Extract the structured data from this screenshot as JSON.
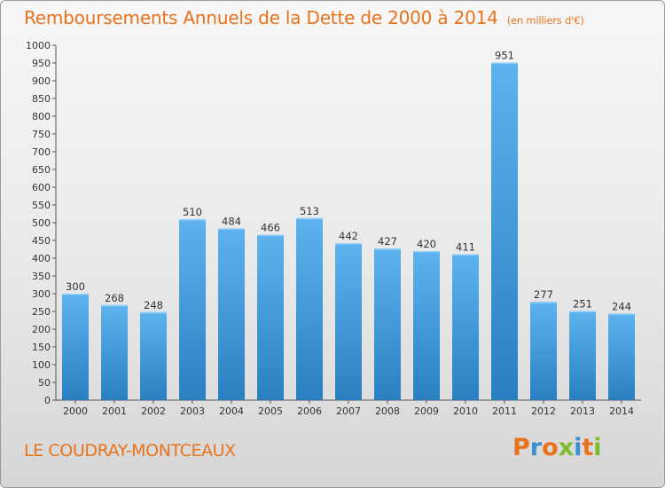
{
  "header": {
    "title": "Remboursements Annuels de la Dette de 2000 à 2014",
    "unit_note": "(en milliers d'€)"
  },
  "footer": {
    "city": "LE COUDRAY-MONTCEAUX",
    "brand": "Proxiti"
  },
  "colors": {
    "title": "#e8731c",
    "bar_top": "#5eb3ee",
    "bar_bottom": "#2a7fc0",
    "axis": "#555555",
    "brand_letters": [
      "#e8731c",
      "#3b8ed0",
      "#e8731c",
      "#7dbb2a",
      "#3b8ed0",
      "#e8731c",
      "#7dbb2a"
    ]
  },
  "chart_data": {
    "type": "bar",
    "title": "Remboursements Annuels de la Dette de 2000 à 2014",
    "xlabel": "",
    "ylabel": "(en milliers d'€)",
    "categories": [
      "2000",
      "2001",
      "2002",
      "2003",
      "2004",
      "2005",
      "2006",
      "2007",
      "2008",
      "2009",
      "2010",
      "2011",
      "2012",
      "2013",
      "2014"
    ],
    "values": [
      300,
      268,
      248,
      510,
      484,
      466,
      513,
      442,
      427,
      420,
      411,
      951,
      277,
      251,
      244
    ],
    "ylim": [
      0,
      1000
    ],
    "yticks": [
      0,
      50,
      100,
      150,
      200,
      250,
      300,
      350,
      400,
      450,
      500,
      550,
      600,
      650,
      700,
      750,
      800,
      850,
      900,
      950,
      1000
    ],
    "grid": false,
    "legend": "none"
  }
}
